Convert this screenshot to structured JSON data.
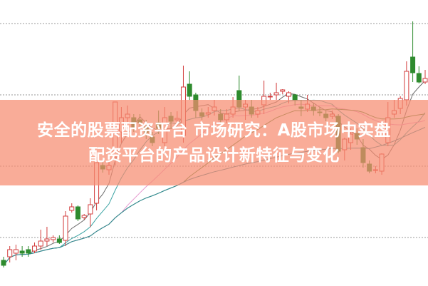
{
  "banner": {
    "title_line1": "安全的股票配资平台 市场研究：A股市场中实盘",
    "title_line2": "配资平台的产品设计新特征与变化",
    "color": "#f68c70"
  },
  "chart_data": {
    "type": "candlestick",
    "title": "",
    "xlabel": "",
    "ylabel": "",
    "ylim": [
      3.2,
      43.3
    ],
    "grid": true,
    "gridlines": [
      10,
      20,
      30,
      40
    ],
    "up_color": "#d23c3c",
    "down_color": "#2e8b2e",
    "moving_averages": [
      {
        "period": 5,
        "color": "#6b6b6b"
      },
      {
        "period": 10,
        "color": "#3aa3a3"
      },
      {
        "period": 20,
        "color": "#e79ad0"
      },
      {
        "period": 30,
        "color": "#4e8a3a"
      },
      {
        "period": 60,
        "color": "#2f8a9a"
      }
    ],
    "ohlc": [
      [
        6.8,
        6.1,
        7.3,
        5.8
      ],
      [
        7.3,
        8.3,
        8.8,
        6.5
      ],
      [
        7.8,
        8.3,
        9.0,
        6.8
      ],
      [
        8.1,
        7.8,
        8.8,
        7.3
      ],
      [
        8.3,
        7.8,
        8.8,
        7.3
      ],
      [
        8.1,
        8.8,
        9.3,
        7.8
      ],
      [
        8.8,
        9.5,
        11.1,
        8.3
      ],
      [
        9.5,
        9.8,
        11.5,
        8.8
      ],
      [
        9.7,
        10.0,
        10.3,
        9.3
      ],
      [
        9.8,
        9.3,
        10.3,
        9.1
      ],
      [
        9.6,
        13.0,
        13.7,
        8.8
      ],
      [
        13.8,
        14.3,
        14.8,
        13.5
      ],
      [
        14.3,
        12.6,
        14.5,
        12.3
      ],
      [
        12.8,
        13.1,
        13.3,
        12.5
      ],
      [
        13.3,
        14.6,
        15.5,
        11.5
      ],
      [
        14.8,
        20.5,
        21.3,
        13.8
      ],
      [
        20.1,
        19.6,
        20.8,
        19.1
      ],
      [
        19.5,
        20.1,
        20.8,
        18.8
      ],
      [
        21.3,
        29.0,
        29.0,
        20.1
      ],
      [
        24.8,
        26.8,
        28.3,
        23.3
      ],
      [
        26.8,
        27.3,
        28.5,
        26.1
      ],
      [
        26.8,
        25.5,
        27.3,
        24.8
      ],
      [
        26.5,
        26.1,
        27.3,
        25.3
      ],
      [
        25.5,
        24.7,
        26.5,
        23.8
      ],
      [
        24.1,
        23.3,
        24.8,
        22.8
      ],
      [
        26.1,
        25.3,
        27.8,
        24.5
      ],
      [
        23.3,
        26.8,
        28.3,
        22.8
      ],
      [
        27.0,
        26.3,
        27.6,
        25.3
      ],
      [
        26.5,
        26.7,
        27.7,
        25.8
      ],
      [
        24.3,
        31.1,
        34.1,
        23.3
      ],
      [
        31.5,
        29.8,
        33.3,
        29.3
      ],
      [
        30.0,
        27.8,
        30.3,
        26.8
      ],
      [
        27.5,
        27.0,
        28.1,
        26.5
      ],
      [
        27.3,
        27.5,
        28.3,
        26.8
      ],
      [
        27.8,
        28.3,
        29.3,
        27.1
      ],
      [
        27.3,
        26.5,
        28.0,
        26.0
      ],
      [
        26.5,
        27.3,
        28.0,
        26.0
      ],
      [
        27.3,
        28.3,
        29.7,
        26.8
      ],
      [
        30.6,
        28.3,
        32.7,
        27.8
      ],
      [
        28.3,
        28.7,
        29.3,
        26.5
      ],
      [
        28.3,
        27.3,
        29.3,
        26.8
      ],
      [
        27.3,
        27.8,
        28.3,
        26.8
      ],
      [
        28.6,
        29.8,
        32.0,
        27.3
      ],
      [
        29.8,
        29.8,
        30.3,
        29.3
      ],
      [
        30.0,
        30.3,
        31.7,
        29.3
      ],
      [
        30.5,
        30.7,
        30.8,
        30.1
      ],
      [
        29.8,
        30.3,
        30.5,
        28.8
      ],
      [
        30.0,
        29.3,
        30.1,
        28.5
      ],
      [
        28.3,
        28.1,
        29.3,
        27.0
      ],
      [
        28.0,
        28.7,
        30.0,
        27.6
      ],
      [
        28.3,
        27.8,
        28.8,
        27.1
      ],
      [
        27.6,
        27.5,
        28.3,
        27.0
      ],
      [
        27.3,
        26.8,
        27.8,
        26.3
      ],
      [
        27.0,
        27.3,
        27.8,
        26.6
      ],
      [
        27.0,
        22.1,
        27.3,
        21.8
      ],
      [
        22.3,
        23.8,
        24.0,
        20.8
      ],
      [
        23.3,
        24.5,
        25.3,
        22.3
      ],
      [
        24.6,
        23.8,
        25.3,
        23.0
      ],
      [
        22.6,
        20.5,
        23.8,
        19.8
      ],
      [
        20.3,
        19.3,
        20.8,
        19.0
      ],
      [
        19.5,
        19.5,
        20.0,
        19.0
      ],
      [
        19.3,
        21.7,
        21.8,
        18.8
      ],
      [
        23.3,
        26.8,
        29.0,
        22.8
      ],
      [
        27.3,
        27.8,
        29.3,
        26.8
      ],
      [
        28.1,
        29.5,
        29.8,
        27.3
      ],
      [
        29.3,
        33.3,
        34.7,
        28.5
      ],
      [
        35.3,
        33.1,
        40.3,
        31.8
      ],
      [
        33.0,
        31.8,
        34.0,
        31.6
      ],
      [
        31.8,
        32.3,
        33.5,
        31.5
      ]
    ]
  }
}
